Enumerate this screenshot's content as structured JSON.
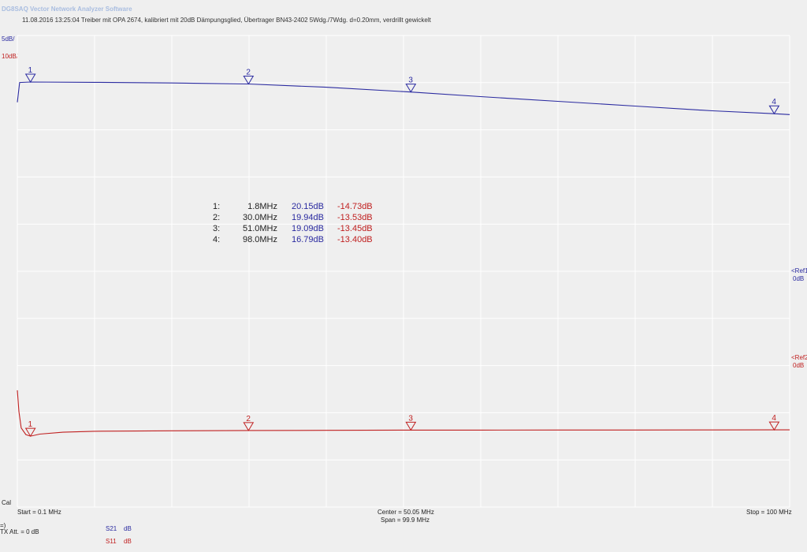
{
  "app": {
    "title": "DG8SAQ Vector Network Analyzer Software",
    "header": "11.08.2016   13:25:04    Treiber mit OPA 2674, kalibriert mit 20dB Dämpungsglied, Übertrager BN43-2402 5Wdg./7Wdg. d=0.20mm, verdrillt gewickelt"
  },
  "scale": {
    "s21": "5dB/",
    "s11": "10dB/"
  },
  "refs": {
    "ref1_label": "<Ref1",
    "ref1_value": "0dB",
    "ref2_label": "<Ref2",
    "ref2_value": "0dB"
  },
  "footer": {
    "cal": "Cal",
    "start": "Start = 0.1 MHz",
    "center": "Center = 50.05 MHz",
    "span": "Span = 99.9 MHz",
    "stop": "Stop = 100 MHz",
    "arrow": "=)",
    "tx_att": "TX Att.  = 0 dB"
  },
  "legend": [
    {
      "trace": "S21",
      "unit": "dB",
      "color": "#2a2aa0"
    },
    {
      "trace": "S11",
      "unit": "dB",
      "color": "#c02020"
    }
  ],
  "markers": [
    {
      "index": "1:",
      "freq": "1.8MHz",
      "s21": "20.15dB",
      "s11": "-14.73dB"
    },
    {
      "index": "2:",
      "freq": "30.0MHz",
      "s21": "19.94dB",
      "s11": "-13.53dB"
    },
    {
      "index": "3:",
      "freq": "51.0MHz",
      "s21": "19.09dB",
      "s11": "-13.45dB"
    },
    {
      "index": "4:",
      "freq": "98.0MHz",
      "s21": "16.79dB",
      "s11": "-13.40dB"
    }
  ],
  "chart_data": {
    "type": "line",
    "x_unit": "MHz",
    "xlim": [
      0.1,
      100
    ],
    "grid": true,
    "y_scale_s21_db_per_div": 5,
    "y_scale_s11_db_per_div": 10,
    "series": [
      {
        "name": "S21",
        "color": "#2a2aa0",
        "x": [
          0.1,
          0.4,
          1.8,
          10,
          20,
          30,
          40,
          51,
          60,
          70,
          80,
          90,
          98,
          100
        ],
        "y": [
          18.0,
          20.1,
          20.15,
          20.12,
          20.05,
          19.94,
          19.6,
          19.09,
          18.6,
          18.1,
          17.6,
          17.1,
          16.79,
          16.7
        ]
      },
      {
        "name": "S11",
        "color": "#c02020",
        "x": [
          0.1,
          0.3,
          0.6,
          1.2,
          1.8,
          3,
          6,
          10,
          20,
          30,
          40,
          51,
          60,
          70,
          80,
          90,
          98,
          100
        ],
        "y": [
          -5.0,
          -9.5,
          -13.0,
          -14.4,
          -14.73,
          -14.3,
          -13.9,
          -13.7,
          -13.6,
          -13.53,
          -13.5,
          -13.45,
          -13.44,
          -13.43,
          -13.42,
          -13.41,
          -13.4,
          -13.4
        ]
      }
    ],
    "markers": [
      {
        "label": "1",
        "x": 1.8
      },
      {
        "label": "2",
        "x": 30.0
      },
      {
        "label": "3",
        "x": 51.0
      },
      {
        "label": "4",
        "x": 98.0
      }
    ]
  }
}
